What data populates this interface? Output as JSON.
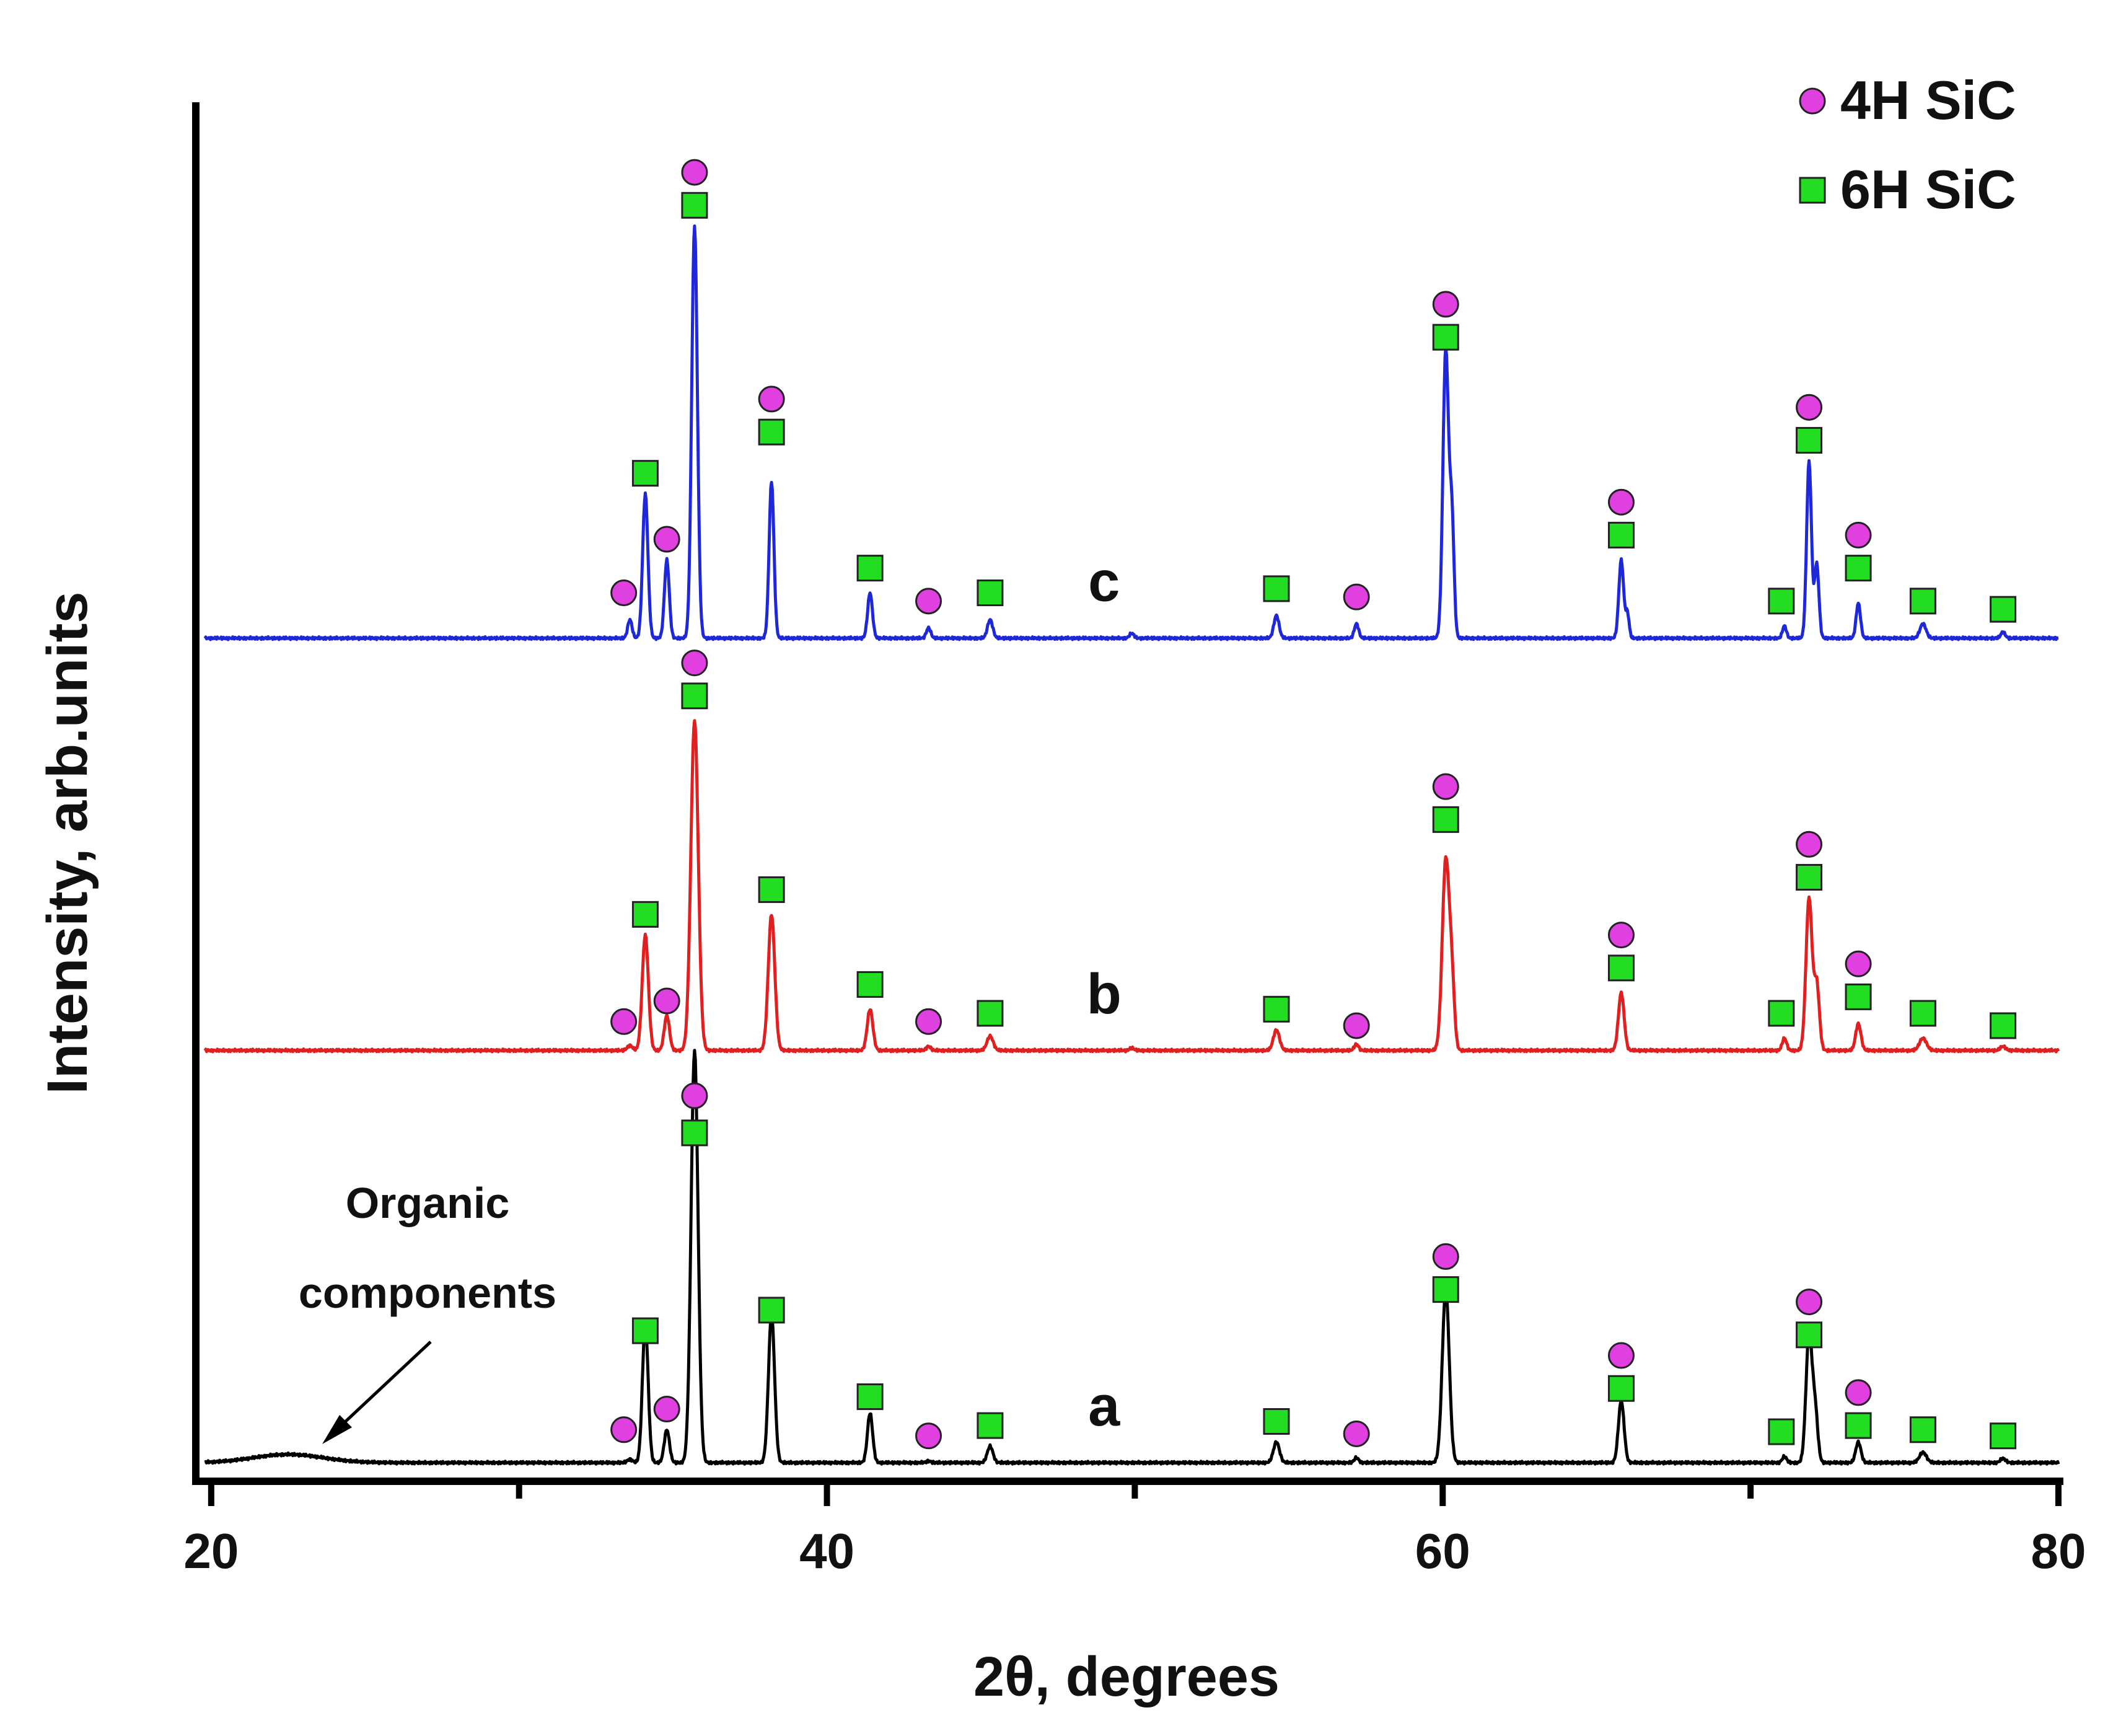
{
  "chart_data": {
    "type": "line",
    "title": "",
    "xlabel": "2θ, degrees",
    "ylabel": "Intensity, arb.units",
    "xlim": [
      19.5,
      80
    ],
    "ylim": [
      0,
      3.3
    ],
    "x_ticks": [
      20,
      40,
      60,
      80
    ],
    "x_minor_ticks": [
      30,
      50,
      70
    ],
    "grid": false,
    "legend_position": "top-right",
    "legend": [
      {
        "label": "4H SiC",
        "marker": "circle",
        "color": "#e040e0"
      },
      {
        "label": "6H SiC",
        "marker": "square",
        "color": "#22dd22"
      }
    ],
    "annotation": {
      "line1": "Organic",
      "line2": "components",
      "x": 22.5
    },
    "series": [
      {
        "name": "a",
        "color": "#000000",
        "offset": 0,
        "label": "a",
        "label_x": 49.0,
        "broad": {
          "x": 22.5,
          "h": 0.02,
          "w": 1.6
        },
        "peaks": [
          {
            "x": 33.6,
            "h": 0.008,
            "w": 0.12
          },
          {
            "x": 34.1,
            "h": 0.34,
            "w": 0.13
          },
          {
            "x": 34.8,
            "h": 0.08,
            "w": 0.12
          },
          {
            "x": 35.7,
            "h": 1.0,
            "w": 0.16
          },
          {
            "x": 38.2,
            "h": 0.36,
            "w": 0.14
          },
          {
            "x": 41.4,
            "h": 0.12,
            "w": 0.12
          },
          {
            "x": 43.3,
            "h": 0.004,
            "w": 0.1
          },
          {
            "x": 45.3,
            "h": 0.04,
            "w": 0.13
          },
          {
            "x": 54.6,
            "h": 0.05,
            "w": 0.14
          },
          {
            "x": 57.2,
            "h": 0.012,
            "w": 0.1
          },
          {
            "x": 60.1,
            "h": 0.42,
            "w": 0.16
          },
          {
            "x": 65.8,
            "h": 0.15,
            "w": 0.13
          },
          {
            "x": 71.1,
            "h": 0.015,
            "w": 0.1
          },
          {
            "x": 71.9,
            "h": 0.31,
            "w": 0.14
          },
          {
            "x": 72.1,
            "h": 0.12,
            "w": 0.12
          },
          {
            "x": 73.5,
            "h": 0.05,
            "w": 0.12
          },
          {
            "x": 75.6,
            "h": 0.025,
            "w": 0.16
          },
          {
            "x": 78.2,
            "h": 0.01,
            "w": 0.12
          }
        ]
      },
      {
        "name": "b",
        "color": "#e02020",
        "offset": 1.0,
        "label": "b",
        "label_x": 49.0,
        "broad": null,
        "peaks": [
          {
            "x": 33.6,
            "h": 0.012,
            "w": 0.12
          },
          {
            "x": 34.1,
            "h": 0.28,
            "w": 0.14
          },
          {
            "x": 34.8,
            "h": 0.085,
            "w": 0.12
          },
          {
            "x": 35.7,
            "h": 0.8,
            "w": 0.17
          },
          {
            "x": 38.2,
            "h": 0.33,
            "w": 0.15
          },
          {
            "x": 41.4,
            "h": 0.1,
            "w": 0.13
          },
          {
            "x": 43.3,
            "h": 0.01,
            "w": 0.1
          },
          {
            "x": 45.3,
            "h": 0.035,
            "w": 0.14
          },
          {
            "x": 49.9,
            "h": 0.006,
            "w": 0.1
          },
          {
            "x": 54.6,
            "h": 0.05,
            "w": 0.14
          },
          {
            "x": 57.2,
            "h": 0.015,
            "w": 0.1
          },
          {
            "x": 60.1,
            "h": 0.46,
            "w": 0.16
          },
          {
            "x": 60.3,
            "h": 0.15,
            "w": 0.12
          },
          {
            "x": 65.8,
            "h": 0.14,
            "w": 0.13
          },
          {
            "x": 71.1,
            "h": 0.03,
            "w": 0.1
          },
          {
            "x": 71.9,
            "h": 0.37,
            "w": 0.14
          },
          {
            "x": 72.15,
            "h": 0.16,
            "w": 0.12
          },
          {
            "x": 73.5,
            "h": 0.065,
            "w": 0.12
          },
          {
            "x": 75.6,
            "h": 0.03,
            "w": 0.16
          },
          {
            "x": 78.2,
            "h": 0.01,
            "w": 0.12
          }
        ]
      },
      {
        "name": "c",
        "color": "#1e28d8",
        "offset": 2.0,
        "label": "c",
        "label_x": 49.0,
        "broad": null,
        "peaks": [
          {
            "x": 33.6,
            "h": 0.045,
            "w": 0.1
          },
          {
            "x": 34.1,
            "h": 0.35,
            "w": 0.12
          },
          {
            "x": 34.8,
            "h": 0.19,
            "w": 0.11
          },
          {
            "x": 35.7,
            "h": 1.0,
            "w": 0.13
          },
          {
            "x": 38.2,
            "h": 0.38,
            "w": 0.11
          },
          {
            "x": 41.4,
            "h": 0.11,
            "w": 0.11
          },
          {
            "x": 43.3,
            "h": 0.025,
            "w": 0.1
          },
          {
            "x": 45.3,
            "h": 0.045,
            "w": 0.12
          },
          {
            "x": 49.9,
            "h": 0.012,
            "w": 0.1
          },
          {
            "x": 54.6,
            "h": 0.055,
            "w": 0.12
          },
          {
            "x": 57.2,
            "h": 0.035,
            "w": 0.1
          },
          {
            "x": 60.1,
            "h": 0.7,
            "w": 0.13
          },
          {
            "x": 60.3,
            "h": 0.28,
            "w": 0.1
          },
          {
            "x": 65.8,
            "h": 0.19,
            "w": 0.11
          },
          {
            "x": 66.0,
            "h": 0.06,
            "w": 0.08
          },
          {
            "x": 71.1,
            "h": 0.03,
            "w": 0.09
          },
          {
            "x": 71.9,
            "h": 0.43,
            "w": 0.11
          },
          {
            "x": 72.15,
            "h": 0.18,
            "w": 0.1
          },
          {
            "x": 73.5,
            "h": 0.085,
            "w": 0.1
          },
          {
            "x": 75.6,
            "h": 0.035,
            "w": 0.14
          },
          {
            "x": 78.2,
            "h": 0.015,
            "w": 0.1
          }
        ]
      }
    ],
    "markers": {
      "a": [
        {
          "x": 33.4,
          "y": 0.08,
          "type": "circle"
        },
        {
          "x": 34.1,
          "y": 0.32,
          "type": "square"
        },
        {
          "x": 34.8,
          "y": 0.13,
          "type": "circle"
        },
        {
          "x": 35.7,
          "y": 0.8,
          "type": "square"
        },
        {
          "x": 35.7,
          "y": 0.89,
          "type": "circle"
        },
        {
          "x": 38.2,
          "y": 0.37,
          "type": "square"
        },
        {
          "x": 41.4,
          "y": 0.16,
          "type": "square"
        },
        {
          "x": 43.3,
          "y": 0.065,
          "type": "circle"
        },
        {
          "x": 45.3,
          "y": 0.09,
          "type": "square"
        },
        {
          "x": 54.6,
          "y": 0.1,
          "type": "square"
        },
        {
          "x": 57.2,
          "y": 0.07,
          "type": "circle"
        },
        {
          "x": 60.1,
          "y": 0.42,
          "type": "square"
        },
        {
          "x": 60.1,
          "y": 0.5,
          "type": "circle"
        },
        {
          "x": 65.8,
          "y": 0.18,
          "type": "square"
        },
        {
          "x": 65.8,
          "y": 0.26,
          "type": "circle"
        },
        {
          "x": 71.0,
          "y": 0.075,
          "type": "square"
        },
        {
          "x": 71.9,
          "y": 0.31,
          "type": "square"
        },
        {
          "x": 71.9,
          "y": 0.39,
          "type": "circle"
        },
        {
          "x": 73.5,
          "y": 0.09,
          "type": "square"
        },
        {
          "x": 73.5,
          "y": 0.17,
          "type": "circle"
        },
        {
          "x": 75.6,
          "y": 0.08,
          "type": "square"
        },
        {
          "x": 78.2,
          "y": 0.065,
          "type": "square"
        }
      ],
      "b": [
        {
          "x": 33.4,
          "y": 1.07,
          "type": "circle"
        },
        {
          "x": 34.1,
          "y": 1.33,
          "type": "square"
        },
        {
          "x": 34.8,
          "y": 1.12,
          "type": "circle"
        },
        {
          "x": 35.7,
          "y": 1.86,
          "type": "square"
        },
        {
          "x": 35.7,
          "y": 1.94,
          "type": "circle"
        },
        {
          "x": 38.2,
          "y": 1.39,
          "type": "square"
        },
        {
          "x": 41.4,
          "y": 1.16,
          "type": "square"
        },
        {
          "x": 43.3,
          "y": 1.07,
          "type": "circle"
        },
        {
          "x": 45.3,
          "y": 1.09,
          "type": "square"
        },
        {
          "x": 54.6,
          "y": 1.1,
          "type": "square"
        },
        {
          "x": 57.2,
          "y": 1.06,
          "type": "circle"
        },
        {
          "x": 60.1,
          "y": 1.56,
          "type": "square"
        },
        {
          "x": 60.1,
          "y": 1.64,
          "type": "circle"
        },
        {
          "x": 65.8,
          "y": 1.2,
          "type": "square"
        },
        {
          "x": 65.8,
          "y": 1.28,
          "type": "circle"
        },
        {
          "x": 71.0,
          "y": 1.09,
          "type": "square"
        },
        {
          "x": 71.9,
          "y": 1.42,
          "type": "square"
        },
        {
          "x": 71.9,
          "y": 1.5,
          "type": "circle"
        },
        {
          "x": 73.5,
          "y": 1.13,
          "type": "square"
        },
        {
          "x": 73.5,
          "y": 1.21,
          "type": "circle"
        },
        {
          "x": 75.6,
          "y": 1.09,
          "type": "square"
        },
        {
          "x": 78.2,
          "y": 1.06,
          "type": "square"
        }
      ],
      "c": [
        {
          "x": 33.4,
          "y": 2.11,
          "type": "circle"
        },
        {
          "x": 34.1,
          "y": 2.4,
          "type": "square"
        },
        {
          "x": 34.8,
          "y": 2.24,
          "type": "circle"
        },
        {
          "x": 35.7,
          "y": 3.05,
          "type": "square"
        },
        {
          "x": 35.7,
          "y": 3.13,
          "type": "circle"
        },
        {
          "x": 38.2,
          "y": 2.5,
          "type": "square"
        },
        {
          "x": 38.2,
          "y": 2.58,
          "type": "circle"
        },
        {
          "x": 41.4,
          "y": 2.17,
          "type": "square"
        },
        {
          "x": 43.3,
          "y": 2.09,
          "type": "circle"
        },
        {
          "x": 45.3,
          "y": 2.11,
          "type": "square"
        },
        {
          "x": 54.6,
          "y": 2.12,
          "type": "square"
        },
        {
          "x": 57.2,
          "y": 2.1,
          "type": "circle"
        },
        {
          "x": 60.1,
          "y": 2.73,
          "type": "square"
        },
        {
          "x": 60.1,
          "y": 2.81,
          "type": "circle"
        },
        {
          "x": 65.8,
          "y": 2.25,
          "type": "square"
        },
        {
          "x": 65.8,
          "y": 2.33,
          "type": "circle"
        },
        {
          "x": 71.0,
          "y": 2.09,
          "type": "square"
        },
        {
          "x": 71.9,
          "y": 2.48,
          "type": "square"
        },
        {
          "x": 71.9,
          "y": 2.56,
          "type": "circle"
        },
        {
          "x": 73.5,
          "y": 2.17,
          "type": "square"
        },
        {
          "x": 73.5,
          "y": 2.25,
          "type": "circle"
        },
        {
          "x": 75.6,
          "y": 2.09,
          "type": "square"
        },
        {
          "x": 78.2,
          "y": 2.07,
          "type": "square"
        }
      ]
    }
  }
}
